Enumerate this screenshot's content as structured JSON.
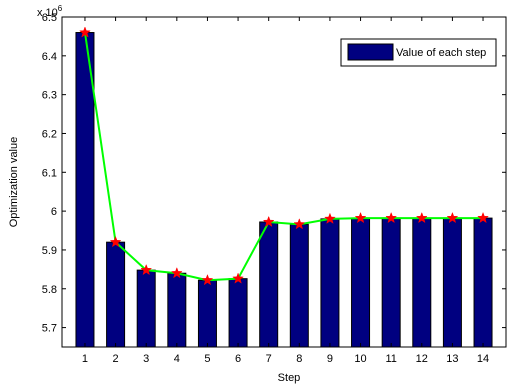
{
  "chart_data": {
    "type": "bar",
    "categories": [
      "1",
      "2",
      "3",
      "4",
      "5",
      "6",
      "7",
      "8",
      "9",
      "10",
      "11",
      "12",
      "13",
      "14"
    ],
    "values": [
      6.46,
      5.92,
      5.848,
      5.84,
      5.822,
      5.826,
      5.972,
      5.966,
      5.98,
      5.982,
      5.982,
      5.982,
      5.982,
      5.982
    ],
    "overlay_line": {
      "type": "line",
      "marker": "star",
      "values": [
        6.46,
        5.92,
        5.848,
        5.84,
        5.822,
        5.826,
        5.972,
        5.966,
        5.98,
        5.982,
        5.982,
        5.982,
        5.982,
        5.982
      ]
    },
    "xlabel": "Step",
    "ylabel": "Optimization value",
    "ylim": [
      5.65,
      6.5
    ],
    "yticks": [
      5.7,
      5.8,
      5.9,
      6,
      6.1,
      6.2,
      6.3,
      6.4,
      6.5
    ],
    "ytick_labels": [
      "5.7",
      "5.8",
      "5.9",
      "6",
      "6.1",
      "6.2",
      "6.3",
      "6.4",
      "6.5"
    ],
    "y_multiplier_label": "x 10",
    "y_multiplier_exponent": "6",
    "legend": {
      "entries": [
        "Value of each step"
      ],
      "position": "top-right"
    },
    "grid": false,
    "colors": {
      "bar": "#000080",
      "line": "#00ff00",
      "marker": "#ff0000"
    }
  }
}
